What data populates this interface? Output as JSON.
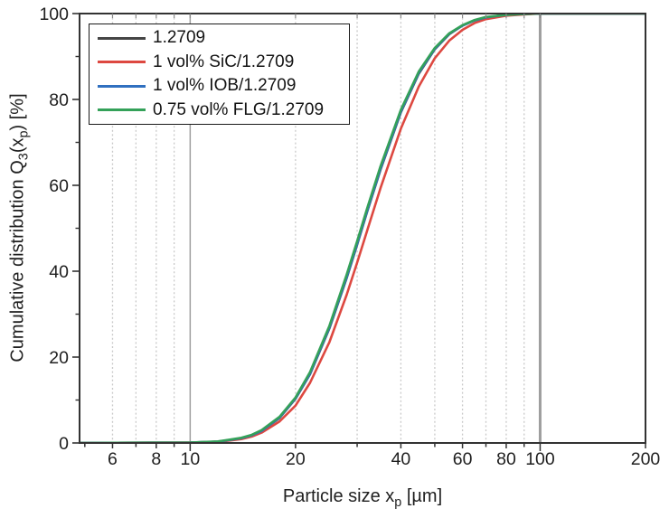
{
  "figure": {
    "background": "#ffffff",
    "text_color": "#1f1f1f"
  },
  "chart_data": {
    "type": "line",
    "title": "",
    "x_axis": {
      "scale": "log",
      "range": [
        4.83,
        200
      ],
      "label_parts": [
        {
          "t": "Particle size x"
        },
        {
          "t": "p",
          "sub": true
        },
        {
          "t": " [µm]"
        }
      ],
      "labeled_ticks": [
        6,
        8,
        10,
        20,
        40,
        60,
        80,
        100,
        200
      ],
      "tick_values": [
        5,
        6,
        7,
        8,
        9,
        10,
        20,
        30,
        40,
        50,
        60,
        70,
        80,
        90,
        100,
        200
      ],
      "decade_ticks": [
        10,
        100
      ]
    },
    "y_axis": {
      "range": [
        0,
        100
      ],
      "label_parts": [
        {
          "t": "Cumulative distribution Q"
        },
        {
          "t": "3",
          "sub": true
        },
        {
          "t": "(x"
        },
        {
          "t": "p",
          "sub": true
        },
        {
          "t": ") [%]"
        }
      ],
      "labeled_ticks": [
        0,
        20,
        40,
        60,
        80,
        100
      ],
      "minor_ticks": [
        10,
        30,
        50,
        70,
        90
      ]
    },
    "grid": {
      "dashed_values": [
        6,
        7,
        8,
        9,
        20,
        30,
        40,
        50,
        60,
        70,
        80,
        90
      ],
      "solid_values": [
        {
          "value": 10,
          "width": 1.5
        },
        {
          "value": 100,
          "width": 3
        }
      ],
      "dashed_color": "#c9c9c9",
      "solid_color": "#9e9e9e",
      "top_tick_values": [
        6,
        7,
        8,
        9,
        10,
        20,
        30,
        40,
        50,
        60,
        70,
        80,
        90,
        100
      ]
    },
    "frame_color": "#333333",
    "tick_color": "#333333",
    "x_samples": [
      4.8,
      10,
      12,
      14,
      15,
      16,
      18,
      20,
      22,
      25,
      28,
      30,
      32,
      35,
      40,
      45,
      50,
      55,
      60,
      65,
      70,
      80,
      90,
      100,
      150,
      200
    ],
    "series": [
      {
        "name": "1.2709",
        "color": "#454545",
        "y": [
          0,
          0.1,
          0.3,
          1.1,
          1.8,
          2.8,
          5.8,
          10.3,
          16.0,
          26.7,
          38.4,
          46.2,
          53.7,
          63.7,
          77.0,
          86.0,
          91.7,
          95.2,
          97.2,
          98.4,
          99.1,
          99.7,
          99.9,
          100,
          100,
          100
        ]
      },
      {
        "name": "1 vol% SiC/1.2709",
        "color": "#dd4840",
        "y": [
          0,
          0.1,
          0.25,
          0.9,
          1.5,
          2.4,
          5.0,
          8.7,
          14.0,
          23.5,
          34.5,
          42.0,
          49.3,
          59.4,
          73.2,
          83.0,
          89.6,
          93.7,
          96.2,
          97.8,
          98.7,
          99.5,
          99.8,
          100,
          100,
          100
        ]
      },
      {
        "name": "1 vol% IOB/1.2709",
        "color": "#3070c0",
        "y": [
          0,
          0.1,
          0.3,
          1.1,
          1.8,
          2.8,
          5.9,
          10.4,
          16.1,
          26.9,
          38.6,
          46.4,
          53.9,
          63.9,
          77.2,
          86.2,
          91.8,
          95.3,
          97.2,
          98.4,
          99.1,
          99.7,
          99.9,
          100,
          100,
          100
        ]
      },
      {
        "name": "0.75 vol% FLG/1.2709",
        "color": "#34a159",
        "y": [
          0,
          0.1,
          0.35,
          1.2,
          1.9,
          3.0,
          6.1,
          10.6,
          16.5,
          27.3,
          39.2,
          47.0,
          54.5,
          64.5,
          77.6,
          86.5,
          92.0,
          95.4,
          97.3,
          98.5,
          99.2,
          99.7,
          99.9,
          100,
          100,
          100
        ]
      }
    ],
    "legend": {
      "position": "top-left",
      "entries": [
        "1.2709",
        "1 vol% SiC/1.2709",
        "1 vol% IOB/1.2709",
        "0.75 vol% FLG/1.2709"
      ]
    }
  }
}
